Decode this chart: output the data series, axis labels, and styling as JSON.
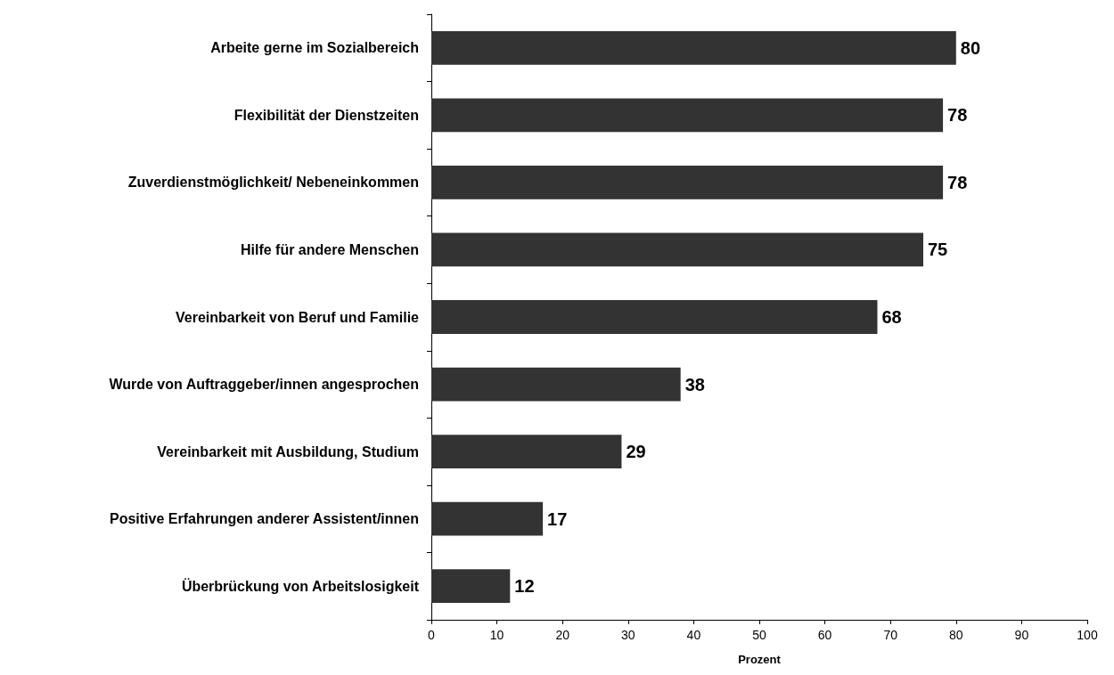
{
  "chart_data": {
    "type": "bar",
    "orientation": "horizontal",
    "categories": [
      "Arbeite gerne im Sozialbereich",
      "Flexibilität der Dienstzeiten",
      "Zuverdienstmöglichkeit/ Nebeneinkommen",
      "Hilfe für andere Menschen",
      "Vereinbarkeit von Beruf und Familie",
      "Wurde von Auftraggeber/innen angesprochen",
      "Vereinbarkeit mit Ausbildung, Studium",
      "Positive Erfahrungen anderer Assistent/innen",
      "Überbrückung von Arbeitslosigkeit"
    ],
    "values": [
      80,
      78,
      78,
      75,
      68,
      38,
      29,
      17,
      12
    ],
    "color": "#333333",
    "xlim": [
      0,
      100
    ],
    "xticks": [
      0,
      10,
      20,
      30,
      40,
      50,
      60,
      70,
      80,
      90,
      100
    ],
    "xlabel": "Prozent",
    "data_labels": true,
    "grid": false
  }
}
